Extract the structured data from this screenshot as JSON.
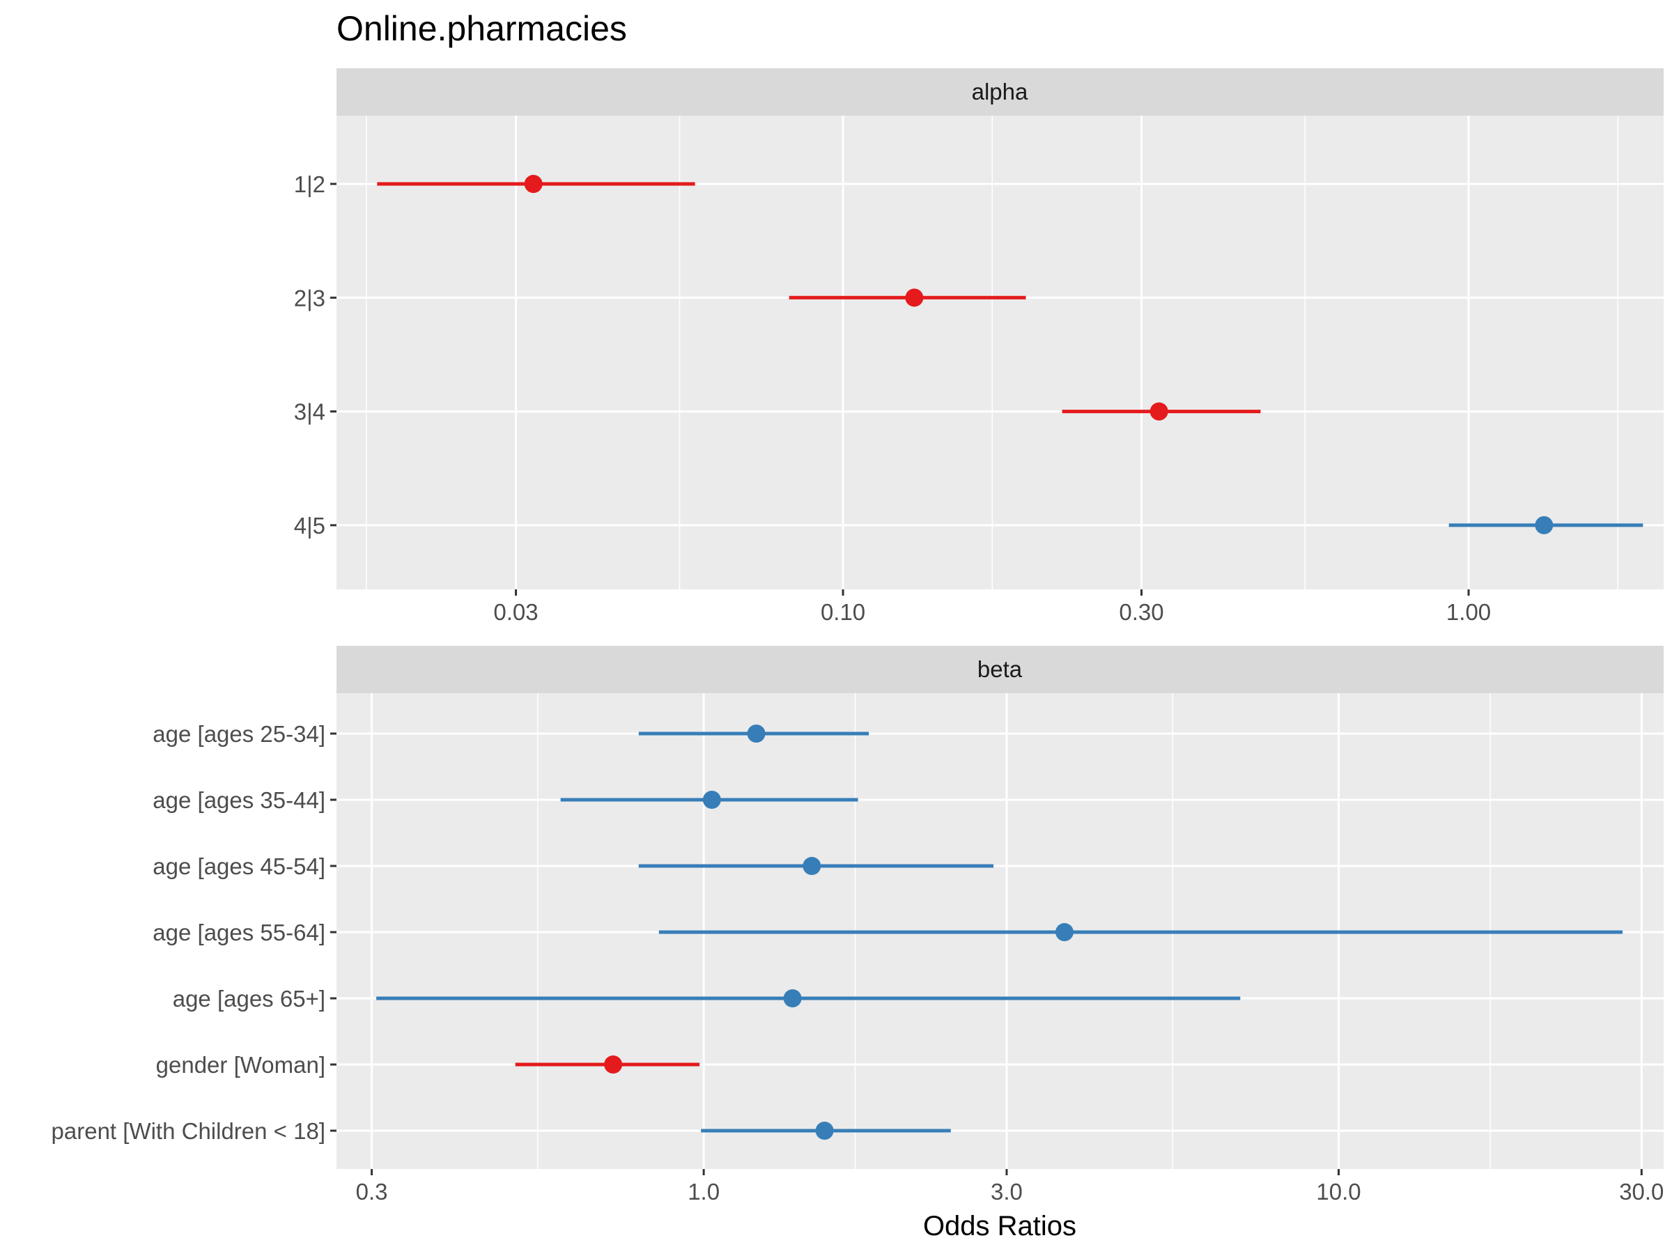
{
  "chart_data": {
    "type": "forest",
    "title": "Online.pharmacies",
    "xlabel": "Odds Ratios",
    "x_scale": "log",
    "colors": {
      "negative": "#E41A1C",
      "positive": "#377EB8",
      "panel_bg": "#EBEBEB",
      "strip_bg": "#D9D9D9",
      "grid": "#FFFFFF"
    },
    "panels": [
      {
        "strip": "alpha",
        "xlim": [
          0.0155,
          2.05
        ],
        "xticks": [
          0.03,
          0.1,
          0.3,
          1.0
        ],
        "xtick_labels": [
          "0.03",
          "0.10",
          "0.30",
          "1.00"
        ],
        "minor_ticks": [
          0.0173,
          0.0548,
          0.1732,
          0.5477,
          1.7321
        ],
        "terms": [
          {
            "label": "1|2",
            "or": 0.032,
            "ci_low": 0.018,
            "ci_high": 0.058,
            "color": "#E41A1C"
          },
          {
            "label": "2|3",
            "or": 0.13,
            "ci_low": 0.082,
            "ci_high": 0.196,
            "color": "#E41A1C"
          },
          {
            "label": "3|4",
            "or": 0.32,
            "ci_low": 0.224,
            "ci_high": 0.465,
            "color": "#E41A1C"
          },
          {
            "label": "4|5",
            "or": 1.32,
            "ci_low": 0.93,
            "ci_high": 1.9,
            "color": "#377EB8"
          }
        ]
      },
      {
        "strip": "beta",
        "xlim": [
          0.264,
          32.5
        ],
        "xticks": [
          0.3,
          1.0,
          3.0,
          10.0,
          30.0
        ],
        "xtick_labels": [
          "0.3",
          "1.0",
          "3.0",
          "10.0",
          "30.0"
        ],
        "minor_ticks": [
          0.5477,
          1.7321,
          5.4772,
          17.3205
        ],
        "terms": [
          {
            "label": "age [ages 25-34]",
            "or": 1.21,
            "ci_low": 0.79,
            "ci_high": 1.82,
            "color": "#377EB8"
          },
          {
            "label": "age [ages 35-44]",
            "or": 1.03,
            "ci_low": 0.595,
            "ci_high": 1.75,
            "color": "#377EB8"
          },
          {
            "label": "age [ages 45-54]",
            "or": 1.48,
            "ci_low": 0.79,
            "ci_high": 2.86,
            "color": "#377EB8"
          },
          {
            "label": "age [ages 55-64]",
            "or": 3.7,
            "ci_low": 0.85,
            "ci_high": 28.0,
            "color": "#377EB8"
          },
          {
            "label": "age [ages 65+]",
            "or": 1.38,
            "ci_low": 0.305,
            "ci_high": 7.0,
            "color": "#377EB8"
          },
          {
            "label": "gender [Woman]",
            "or": 0.72,
            "ci_low": 0.505,
            "ci_high": 0.985,
            "color": "#E41A1C"
          },
          {
            "label": "parent [With Children < 18]",
            "or": 1.55,
            "ci_low": 0.99,
            "ci_high": 2.45,
            "color": "#377EB8"
          }
        ]
      }
    ]
  }
}
